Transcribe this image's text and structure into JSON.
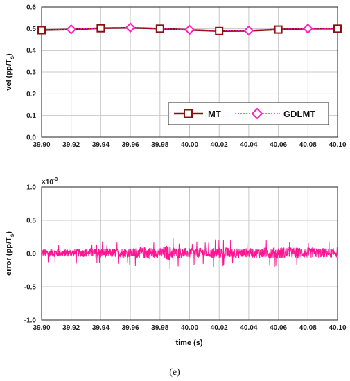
{
  "caption": "(e)",
  "colors": {
    "mt": "#8B1010",
    "gdlmt": "#FF1FC0",
    "grid": "#c8c8c8",
    "error": "#FF1493"
  },
  "chart_data": [
    {
      "type": "line",
      "ylabel_main": "vel (pp/T",
      "ylabel_sub": "s",
      "ylabel_close": ")",
      "xlim": [
        39.9,
        40.1
      ],
      "ylim": [
        0,
        0.6
      ],
      "x_ticks": [
        "39.90",
        "39.92",
        "39.94",
        "39.96",
        "39.98",
        "40.00",
        "40.02",
        "40.04",
        "40.06",
        "40.08",
        "40.10"
      ],
      "y_ticks": [
        "0.0",
        "0.1",
        "0.2",
        "0.3",
        "0.4",
        "0.5",
        "0.6"
      ],
      "y_tick_values": [
        0,
        0.1,
        0.2,
        0.3,
        0.4,
        0.5,
        0.6
      ],
      "legend_position": "lower-right",
      "grid": true,
      "x": [
        39.9,
        39.92,
        39.94,
        39.96,
        39.98,
        40.0,
        40.02,
        40.04,
        40.06,
        40.08,
        40.1
      ],
      "series": [
        {
          "name": "MT",
          "marker": "square",
          "values": [
            0.493,
            0.496,
            0.502,
            0.504,
            0.5,
            0.494,
            0.489,
            0.49,
            0.496,
            0.5,
            0.5
          ]
        },
        {
          "name": "GDLMT",
          "marker": "diamond",
          "values": [
            0.493,
            0.497,
            0.502,
            0.505,
            0.5,
            0.495,
            0.49,
            0.491,
            0.497,
            0.5,
            0.5
          ]
        }
      ]
    },
    {
      "type": "line",
      "ylabel_main": "error (pp/T",
      "ylabel_sub": "s",
      "ylabel_close": ")",
      "xlabel": "time (s)",
      "exponent_base": "×10",
      "exponent_power": "-3",
      "xlim": [
        39.9,
        40.1
      ],
      "ylim": [
        -1.0,
        1.0
      ],
      "x_ticks": [
        "39.90",
        "39.92",
        "39.94",
        "39.96",
        "39.98",
        "40.00",
        "40.02",
        "40.04",
        "40.06",
        "40.08",
        "40.10"
      ],
      "y_ticks": [
        "-1.0",
        "-0.5",
        "0.0",
        "0.5",
        "1.0"
      ],
      "y_tick_values": [
        -1.0,
        -0.5,
        0.0,
        0.5,
        1.0
      ],
      "grid": true,
      "noise_envelope": {
        "x": [
          39.9,
          39.92,
          39.94,
          39.96,
          39.97,
          39.98,
          39.985,
          39.99,
          40.0,
          40.02,
          40.04,
          40.06,
          40.08,
          40.1
        ],
        "amplitude": [
          0.09,
          0.08,
          0.1,
          0.1,
          0.13,
          0.1,
          0.17,
          0.12,
          0.1,
          0.12,
          0.1,
          0.13,
          0.11,
          0.1
        ]
      }
    }
  ]
}
